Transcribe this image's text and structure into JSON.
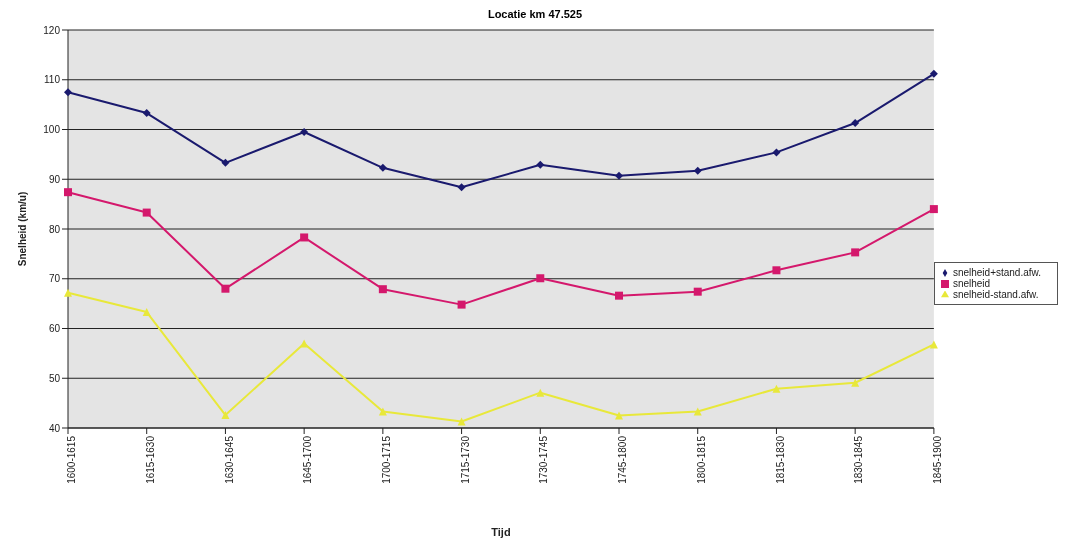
{
  "chart_data": {
    "type": "line",
    "title": "Locatie km 47.525",
    "xlabel": "Tijd",
    "ylabel": "Snelheid (km/u)",
    "categories": [
      "1600-1615",
      "1615-1630",
      "1630-1645",
      "1645-1700",
      "1700-1715",
      "1715-1730",
      "1730-1745",
      "1745-1800",
      "1800-1815",
      "1815-1830",
      "1830-1845",
      "1845-1900"
    ],
    "series": [
      {
        "name": "snelheid+stand.afw.",
        "color": "#1a1a6e",
        "marker": "diamond",
        "values": [
          107.5,
          103.3,
          93.3,
          99.5,
          92.3,
          88.4,
          92.9,
          90.7,
          91.7,
          95.4,
          101.3,
          111.2
        ]
      },
      {
        "name": "snelheid",
        "color": "#d4186c",
        "marker": "square",
        "values": [
          87.4,
          83.3,
          68,
          78.3,
          67.9,
          64.8,
          70.1,
          66.6,
          67.4,
          71.7,
          75.3,
          84
        ]
      },
      {
        "name": "snelheid-stand.afw.",
        "color": "#e8e83a",
        "marker": "triangle",
        "values": [
          67.2,
          63.3,
          42.6,
          57,
          43.3,
          41.3,
          47.1,
          42.5,
          43.3,
          47.9,
          49.1,
          56.8
        ]
      }
    ],
    "ylim": [
      40,
      120
    ],
    "yticks": [
      40,
      50,
      60,
      70,
      80,
      90,
      100,
      110,
      120
    ],
    "grid": "y",
    "legend": "right",
    "line_style": "solid"
  }
}
